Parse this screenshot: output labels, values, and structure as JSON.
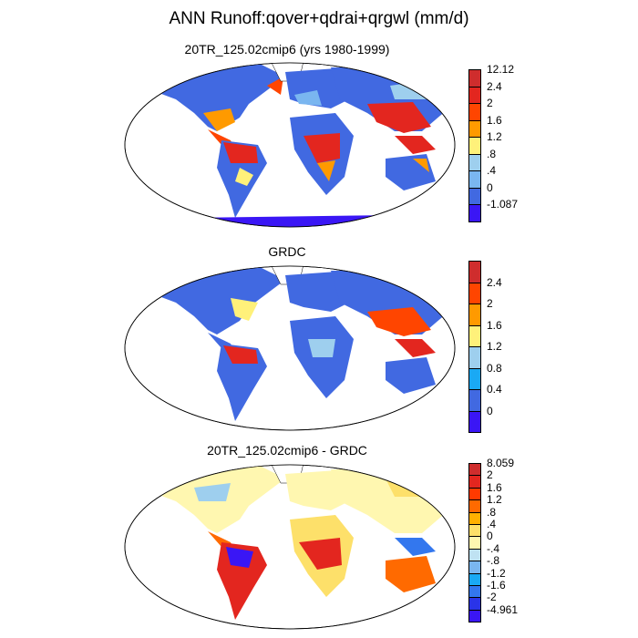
{
  "figure": {
    "title": "ANN Runoff:qover+qdrai+qrgwl (mm/d)"
  },
  "panels": [
    {
      "title": "20TR_125.02cmip6 (yrs 1980-1999)",
      "colorbar": {
        "colors": [
          "#3a16f5",
          "#4169e1",
          "#7ab6f0",
          "#9ecfee",
          "#fff17a",
          "#ff9a00",
          "#ff4500",
          "#e3261f",
          "#cf2d2d"
        ],
        "labels": [
          "-1.087",
          "0",
          ".4",
          ".8",
          "1.2",
          "1.6",
          "2",
          "2.4",
          "12.12"
        ]
      }
    },
    {
      "title": "GRDC",
      "colorbar": {
        "colors": [
          "#3a16f5",
          "#4169e1",
          "#1aa9f4",
          "#9ecfee",
          "#fff17a",
          "#ff9a00",
          "#ff4500",
          "#cf2d2d"
        ],
        "labels": [
          "0",
          "0.4",
          "0.8",
          "1.2",
          "1.6",
          "2",
          "2.4"
        ]
      }
    },
    {
      "title": "20TR_125.02cmip6 - GRDC",
      "colorbar": {
        "colors": [
          "#3a16f5",
          "#2a34e8",
          "#3377ee",
          "#1aa9f4",
          "#7ab6f0",
          "#bfe2f2",
          "#fff7b0",
          "#fde06a",
          "#ffb000",
          "#ff6a00",
          "#ff3a00",
          "#e3261f",
          "#cf2d2d"
        ],
        "labels": [
          "-4.961",
          "-2",
          "-1.6",
          "-1.2",
          "-.8",
          "-.4",
          "0",
          ".4",
          ".8",
          "1.2",
          "1.6",
          "2",
          "8.059"
        ]
      }
    }
  ]
}
